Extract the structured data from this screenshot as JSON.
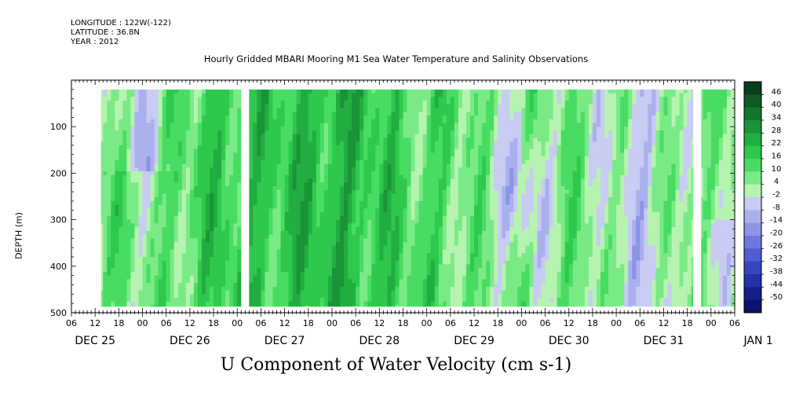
{
  "header": {
    "longitude": "LONGITUDE : 122W(-122)",
    "latitude": "LATITUDE : 36.8N",
    "year": "YEAR : 2012",
    "title": "Hourly Gridded MBARI Mooring M1 Sea Water Temperature and Salinity Observations"
  },
  "chart_data": {
    "type": "heatmap",
    "title": "Hourly Gridded MBARI Mooring M1 Sea Water Temperature and Salinity Observations",
    "variable": "U Component of Water Velocity (cm s-1)",
    "xlabel": "",
    "ylabel": "DEPTH (m)",
    "x_range": [
      "2012-12-25T06:00",
      "2013-01-01T06:00"
    ],
    "y_range_depth_m": [
      500,
      0
    ],
    "y_data_range_depth_m": [
      20,
      487
    ],
    "y_ticks": [
      "100",
      "200",
      "300",
      "400",
      "500"
    ],
    "y_tick_values": [
      100,
      200,
      300,
      400,
      500
    ],
    "x_tick_hours": [
      "06",
      "12",
      "18",
      "00",
      "06",
      "12",
      "18",
      "00",
      "06",
      "12",
      "18",
      "00",
      "06",
      "12",
      "18",
      "00",
      "06",
      "12",
      "18",
      "00",
      "06",
      "12",
      "18",
      "00",
      "06",
      "12",
      "18",
      "00",
      "06"
    ],
    "day_labels": [
      "DEC 25",
      "DEC 26",
      "DEC 27",
      "DEC 28",
      "DEC 29",
      "DEC 30",
      "DEC 31",
      "JAN  1"
    ],
    "day_label_hour_offsets": [
      6,
      30,
      54,
      78,
      102,
      126,
      150,
      174
    ],
    "colorbar": {
      "levels": [
        48,
        46,
        40,
        34,
        28,
        22,
        16,
        10,
        4,
        -2,
        -8,
        -14,
        -20,
        -26,
        -32,
        -38,
        -44,
        -50
      ],
      "labels": [
        "46",
        "40",
        "34",
        "28",
        "22",
        "16",
        "10",
        "4",
        "-2",
        "-8",
        "-14",
        "-20",
        "-26",
        "-32",
        "-38",
        "-44",
        "-50"
      ],
      "colors": [
        "#0a3d1a",
        "#0e5a22",
        "#12772a",
        "#1a9436",
        "#22ad40",
        "#2ec84d",
        "#48dc62",
        "#7aea86",
        "#b6f3b0",
        "#c8cbf2",
        "#aab0ee",
        "#8c94e6",
        "#6e78dc",
        "#505cd0",
        "#3646c0",
        "#2232a8",
        "#14208a",
        "#0a126a"
      ]
    },
    "missing_data_gaps_hours": [
      [
        0,
        7.5
      ],
      [
        43,
        45
      ],
      [
        157.5,
        159.5
      ]
    ],
    "notes_visible": "velocities mostly between -10 and +30 cm s-1; stronger positive (green) flow Dec 27-28, negative (blue) patches Dec 25, Dec 29-31"
  },
  "colors": {
    "positive_strong": "#12772a",
    "positive_weak": "#b6f3b0",
    "negative_weak": "#c8cbf2",
    "negative_strong": "#14208a",
    "gap": "#ffffff"
  }
}
